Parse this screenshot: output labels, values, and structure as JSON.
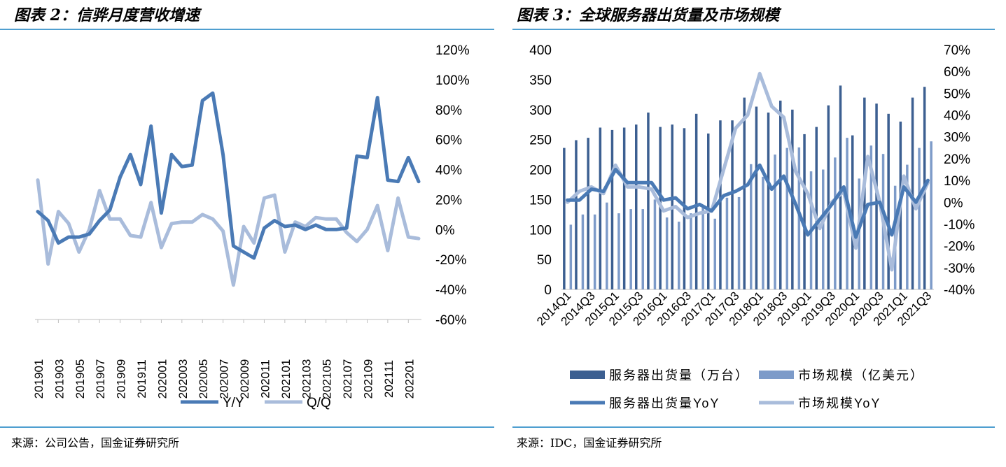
{
  "left": {
    "title": "图表 2：信骅月度营收增速",
    "source": "来源：公司公告，国金证券研究所",
    "chart_data": {
      "type": "line",
      "title": "图表 2：信骅月度营收增速",
      "x": [
        "201901",
        "201902",
        "201903",
        "201904",
        "201905",
        "201906",
        "201907",
        "201908",
        "201909",
        "201910",
        "201911",
        "201912",
        "202001",
        "202002",
        "202003",
        "202004",
        "202005",
        "202006",
        "202007",
        "202008",
        "202009",
        "202010",
        "202011",
        "202012",
        "202101",
        "202102",
        "202103",
        "202104",
        "202105",
        "202106",
        "202107",
        "202108",
        "202109",
        "202110",
        "202111",
        "202112",
        "202201",
        "202202"
      ],
      "x_tick_labels": [
        "201901",
        "201903",
        "201905",
        "201907",
        "201909",
        "201911",
        "202001",
        "202003",
        "202005",
        "202007",
        "202009",
        "202011",
        "202101",
        "202103",
        "202105",
        "202107",
        "202109",
        "202111",
        "202201"
      ],
      "y_ticks": [
        "120%",
        "100%",
        "80%",
        "60%",
        "40%",
        "20%",
        "0%",
        "-20%",
        "-40%",
        "-60%"
      ],
      "ylim": [
        -60,
        120
      ],
      "y_axis_side": "right",
      "legend_position": "bottom",
      "series": [
        {
          "name": "Y/Y",
          "color": "#4a7ab5",
          "values": [
            12,
            6,
            -9,
            -5,
            -5,
            -3,
            6,
            13,
            35,
            50,
            30,
            69,
            11,
            50,
            42,
            43,
            86,
            91,
            50,
            -11,
            -15,
            -19,
            1,
            6,
            2,
            3,
            0,
            3,
            0,
            0,
            1,
            49,
            48,
            88,
            33,
            32,
            48,
            32
          ]
        },
        {
          "name": "Q/Q",
          "color": "#a9bcdb",
          "values": [
            33,
            -23,
            12,
            4,
            -15,
            0,
            26,
            7,
            7,
            -4,
            -5,
            18,
            -12,
            4,
            5,
            5,
            10,
            7,
            -1,
            -37,
            2,
            -9,
            21,
            23,
            -15,
            5,
            2,
            8,
            7,
            7,
            -2,
            -8,
            0,
            16,
            -14,
            21,
            -5,
            -6
          ]
        }
      ]
    }
  },
  "right": {
    "title": "图表 3：全球服务器出货量及市场规模",
    "source": "来源：IDC，国金证券研究所",
    "chart_data": {
      "type": "bar",
      "title": "图表 3：全球服务器出货量及市场规模",
      "categories": [
        "2014Q1",
        "2014Q2",
        "2014Q3",
        "2014Q4",
        "2015Q1",
        "2015Q2",
        "2015Q3",
        "2015Q4",
        "2016Q1",
        "2016Q2",
        "2016Q3",
        "2016Q4",
        "2017Q1",
        "2017Q2",
        "2017Q3",
        "2017Q4",
        "2018Q1",
        "2018Q2",
        "2018Q3",
        "2018Q4",
        "2019Q1",
        "2019Q2",
        "2019Q3",
        "2019Q4",
        "2020Q1",
        "2020Q2",
        "2020Q3",
        "2020Q4",
        "2021Q1",
        "2021Q2",
        "2021Q3"
      ],
      "x_tick_labels": [
        "2014Q1",
        "2014Q3",
        "2015Q1",
        "2015Q3",
        "2016Q1",
        "2016Q3",
        "2017Q1",
        "2017Q3",
        "2018Q1",
        "2018Q3",
        "2019Q1",
        "2019Q3",
        "2020Q1",
        "2020Q3",
        "2021Q1",
        "2021Q3"
      ],
      "left_axis": {
        "ticks": [
          "400",
          "350",
          "300",
          "250",
          "200",
          "150",
          "100",
          "50",
          "0"
        ],
        "ylim": [
          0,
          400
        ]
      },
      "right_axis": {
        "ticks": [
          "70%",
          "60%",
          "50%",
          "40%",
          "30%",
          "20%",
          "10%",
          "0%",
          "-10%",
          "-20%",
          "-30%",
          "-40%"
        ],
        "ylim": [
          -40,
          70
        ]
      },
      "legend_position": "bottom",
      "series": [
        {
          "name": "服务器出货量（万台）",
          "kind": "bar",
          "axis": "left",
          "color": "#3c5f91",
          "values": [
            236,
            249,
            253,
            270,
            266,
            270,
            275,
            295,
            271,
            275,
            269,
            293,
            260,
            282,
            282,
            320,
            305,
            295,
            315,
            300,
            259,
            271,
            307,
            340,
            257,
            320,
            310,
            293,
            280,
            320,
            338
          ]
        },
        {
          "name": "市场规模（亿美元）",
          "kind": "bar",
          "axis": "left",
          "color": "#7d9bc9",
          "values": [
            108,
            125,
            125,
            145,
            127,
            134,
            134,
            150,
            120,
            113,
            127,
            137,
            118,
            153,
            154,
            209,
            188,
            225,
            236,
            237,
            197,
            200,
            220,
            253,
            185,
            240,
            226,
            173,
            208,
            236,
            247
          ]
        },
        {
          "name": "服务器出货量YoY",
          "kind": "line",
          "axis": "right",
          "color": "#4a7ab5",
          "values": [
            1,
            1,
            6,
            5,
            15,
            9,
            9,
            9,
            1,
            2,
            -3,
            -1,
            -4,
            3,
            5,
            8,
            17,
            6,
            12,
            -1,
            -15,
            -8,
            -1,
            7,
            -16,
            -1,
            0,
            -15,
            7,
            0,
            10
          ]
        },
        {
          "name": "市场规模YoY",
          "kind": "line",
          "axis": "right",
          "color": "#a9bcdb",
          "values": [
            0,
            5,
            7,
            4,
            17,
            7,
            7,
            6,
            -4,
            -2,
            -7,
            -5,
            -4,
            15,
            34,
            40,
            59,
            44,
            39,
            14,
            4,
            -12,
            0,
            5,
            -21,
            21,
            0,
            -31,
            12,
            -3,
            9
          ]
        }
      ]
    }
  }
}
